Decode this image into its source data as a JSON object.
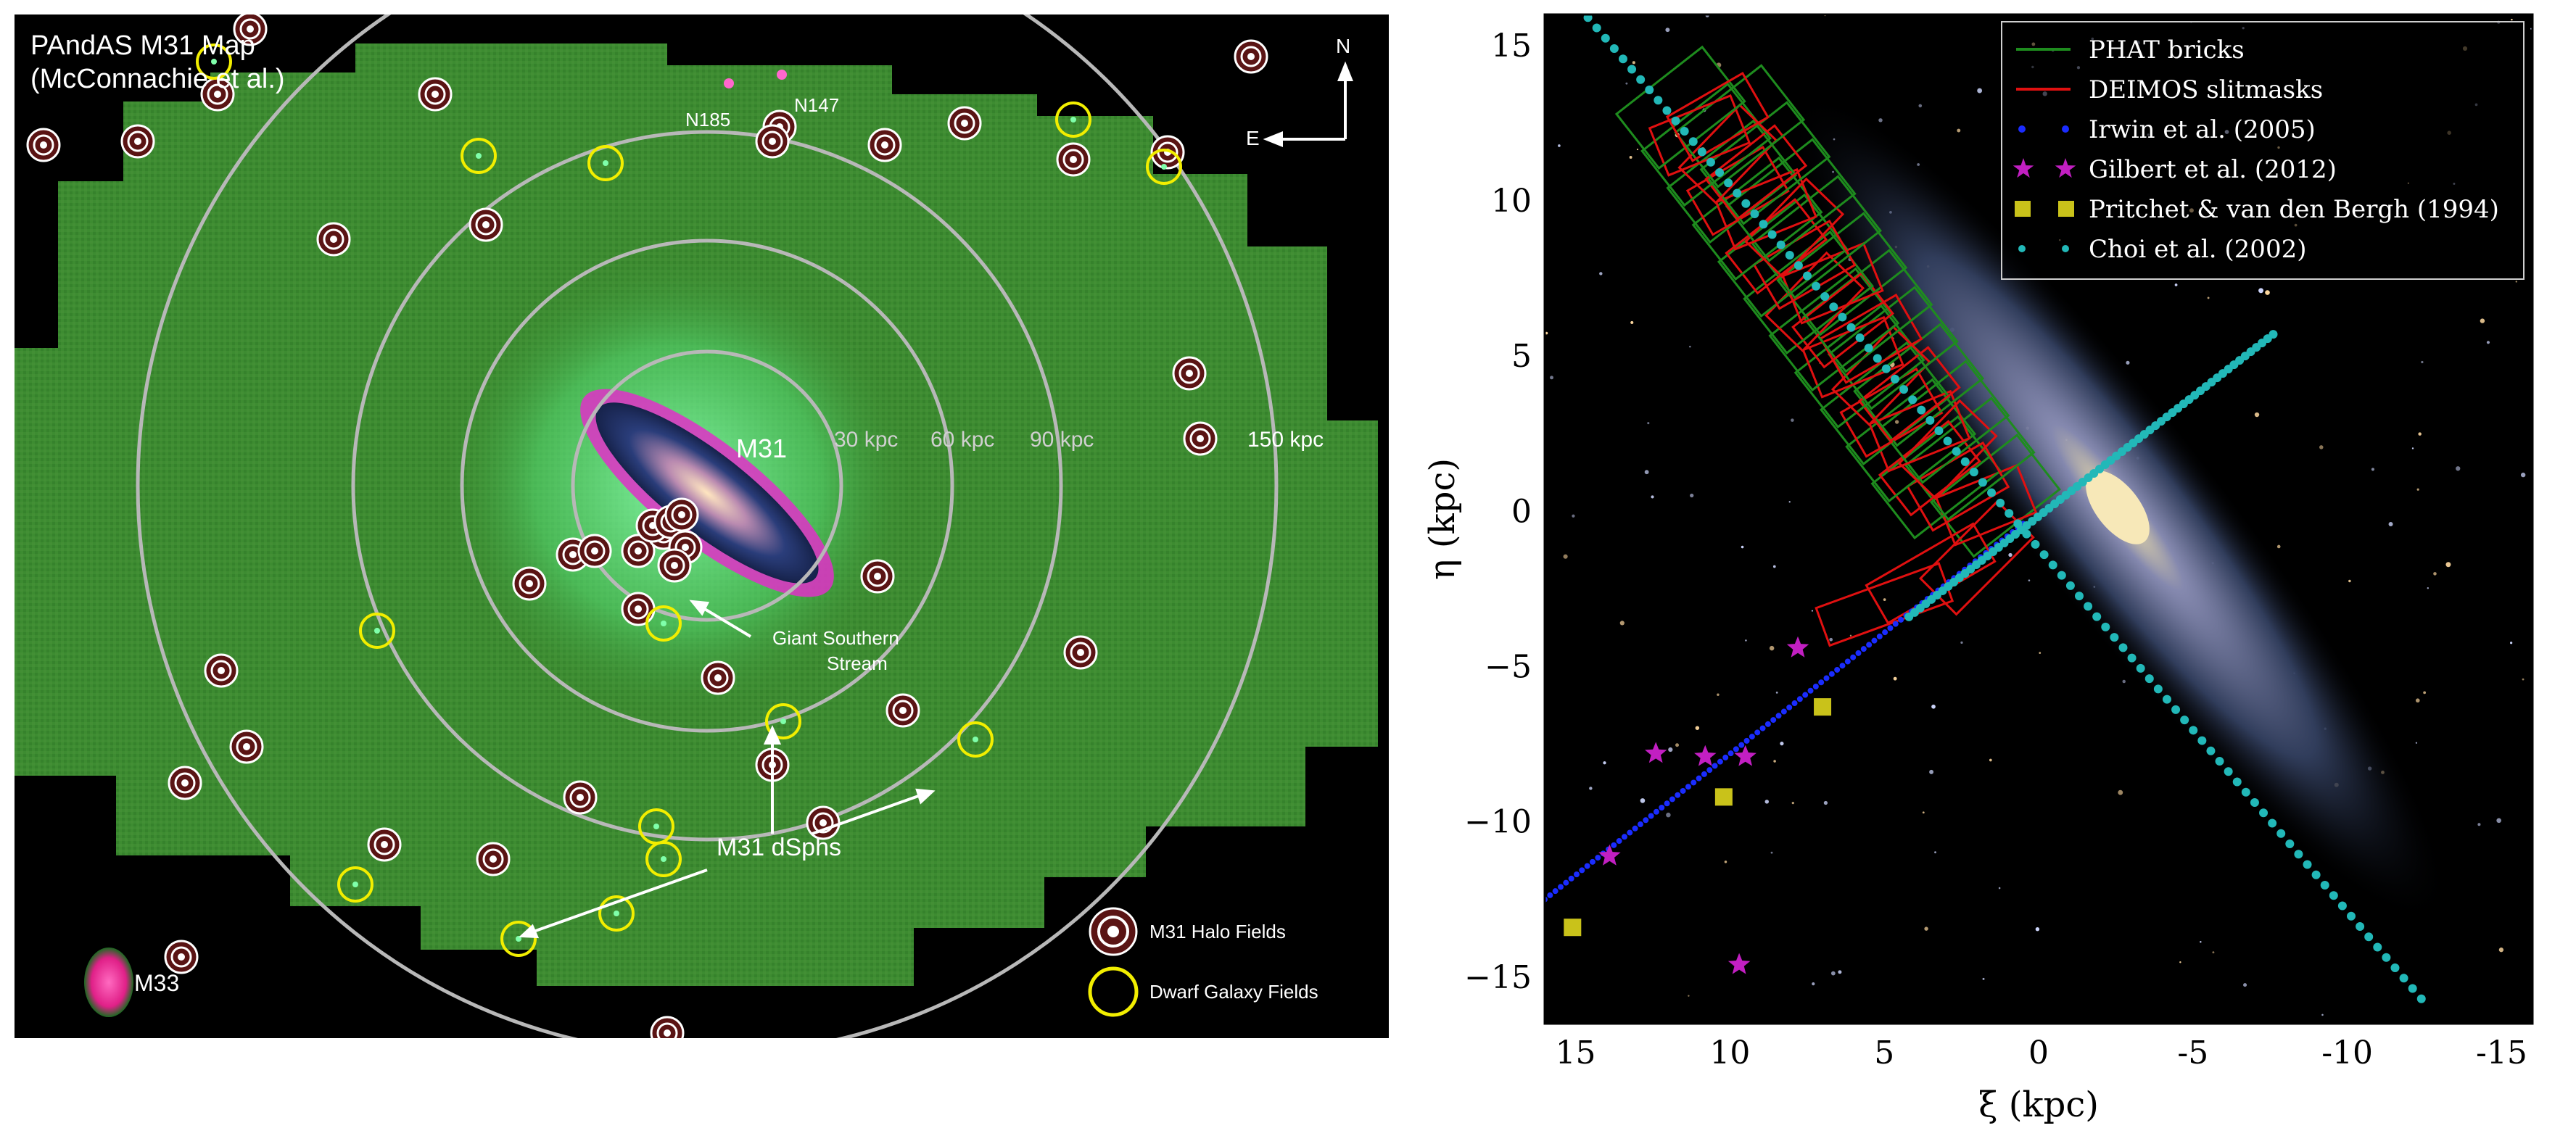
{
  "map": {
    "title_line1": "PAndAS M31 Map",
    "title_line2": "(McConnachie et al.)",
    "compass_n": "N",
    "compass_e": "E",
    "galaxy_m31": "M31",
    "galaxy_m33": "M33",
    "galaxy_n185": "N185",
    "galaxy_n147": "N147",
    "ring_labels": [
      "30 kpc",
      "60 kpc",
      "90 kpc",
      "150 kpc"
    ],
    "stream_label_1": "Giant Southern",
    "stream_label_2": "Stream",
    "dsph_label": "M31 dSphs",
    "legend_halo": "M31 Halo Fields",
    "legend_dwarf": "Dwarf Galaxy Fields",
    "colors": {
      "halo_ring": "#7a1f1f",
      "dwarf_ring": "#f2ee00",
      "survey": "#3a8a2e",
      "rings": "#b8b8b8"
    }
  },
  "chart_data": {
    "type": "scatter",
    "xlabel": "ξ (kpc)",
    "ylabel": "η (kpc)",
    "xlim": [
      16,
      -16
    ],
    "ylim": [
      -16.5,
      16
    ],
    "x_ticks": [
      "15",
      "10",
      "5",
      "0",
      "-5",
      "-10",
      "-15"
    ],
    "y_ticks": [
      "15",
      "10",
      "5",
      "0",
      "−5",
      "−10",
      "−15"
    ],
    "legend": [
      {
        "label": "PHAT bricks",
        "color": "#1e8c1e",
        "marker": "line"
      },
      {
        "label": "DEIMOS slitmasks",
        "color": "#e01010",
        "marker": "line"
      },
      {
        "label": "Irwin et al. (2005)",
        "color": "#1a2cff",
        "marker": "dot"
      },
      {
        "label": "Gilbert et al. (2012)",
        "color": "#c21fc2",
        "marker": "star"
      },
      {
        "label": "Pritchet & van den Bergh (1994)",
        "color": "#c9c21a",
        "marker": "square"
      },
      {
        "label": "Choi et al. (2002)",
        "color": "#22b8b8",
        "marker": "dot"
      }
    ],
    "series": [
      {
        "name": "Gilbert et al. (2012)",
        "points": [
          [
            7.8,
            -4.4
          ],
          [
            12.4,
            -7.8
          ],
          [
            10.8,
            -7.9
          ],
          [
            9.5,
            -7.9
          ],
          [
            13.9,
            -11.1
          ],
          [
            9.7,
            -14.6
          ]
        ]
      },
      {
        "name": "Pritchet & van den Bergh (1994)",
        "points": [
          [
            7.0,
            -6.3
          ],
          [
            10.2,
            -9.2
          ],
          [
            15.1,
            -13.4
          ]
        ]
      },
      {
        "name": "Irwin et al. (2005)",
        "line": [
          [
            0.5,
            -0.4
          ],
          [
            16.0,
            -12.5
          ]
        ]
      },
      {
        "name": "Choi et al. (2002)",
        "lines": [
          [
            [
              14.6,
              15.9
            ],
            [
              -12.4,
              -15.7
            ]
          ],
          [
            [
              -7.6,
              5.7
            ],
            [
              4.2,
              -3.4
            ]
          ]
        ]
      }
    ],
    "grid": false,
    "legend_position": "top-right"
  }
}
